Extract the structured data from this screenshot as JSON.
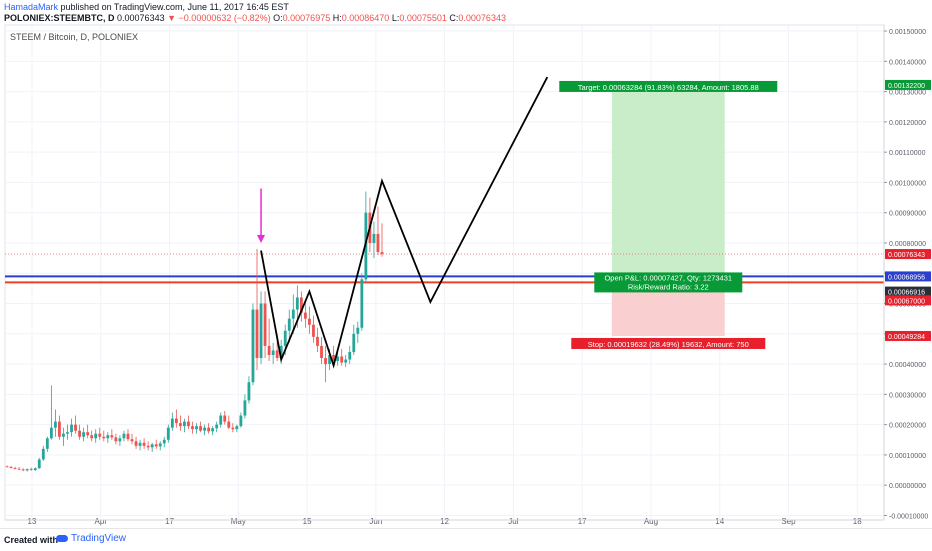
{
  "header": {
    "author": "HamadaMark",
    "published": "published on TradingView.com, June 11, 2017 16:45 EST",
    "symbol": "POLONIEX:STEEMBTC, D",
    "last": "0.00076343",
    "arrow": "▼",
    "change": "−0.00000632 (−0.82%)",
    "o_label": "O:",
    "o_value": "0.00076975",
    "h_label": "H:",
    "h_value": "0.00086470",
    "l_label": "L:",
    "l_value": "0.00075501",
    "c_label": "C:",
    "c_value": "0.00076343"
  },
  "footer": {
    "created_with": "Created with",
    "brand": "TradingView"
  },
  "colors": {
    "up": "#26a69a",
    "down": "#ef5350",
    "blue_line": "#2a3fce",
    "red_line": "#ef4023",
    "target_zone": "#c9ecc9",
    "stop_zone": "#f9cfcf",
    "label_green": "#089a37",
    "label_red": "#e8202b",
    "arrow": "#e62ed6",
    "pattern": "#000000"
  },
  "chart_data": {
    "type": "candlestick",
    "title": "STEEM / Bitcoin, D, POLONIEX",
    "x_tick_labels": [
      "13",
      "Apr",
      "17",
      "May",
      "15",
      "Jun",
      "12",
      "Jul",
      "17",
      "Aug",
      "14",
      "Sep",
      "18"
    ],
    "y_ticks": [
      "0.00150000",
      "0.00140000",
      "0.00130000",
      "0.00120000",
      "0.00110000",
      "0.00100000",
      "0.00090000",
      "0.00080000",
      "0.00070000",
      "0.00060000",
      "0.00050000",
      "0.00040000",
      "0.00030000",
      "0.00020000",
      "0.00010000",
      "0.00000000",
      "-0.00010000"
    ],
    "ylim": [
      -0.000115,
      0.00152
    ],
    "days_visible": 218,
    "candles": [
      {
        "o": 6.2e-05,
        "h": 6.5e-05,
        "l": 5.9e-05,
        "c": 6e-05
      },
      {
        "o": 6e-05,
        "h": 6.4e-05,
        "l": 5.5e-05,
        "c": 5.7e-05
      },
      {
        "o": 5.7e-05,
        "h": 6.1e-05,
        "l": 5.2e-05,
        "c": 5.4e-05
      },
      {
        "o": 5.4e-05,
        "h": 6e-05,
        "l": 5e-05,
        "c": 5.2e-05
      },
      {
        "o": 5.2e-05,
        "h": 5.6e-05,
        "l": 4.6e-05,
        "c": 4.9e-05
      },
      {
        "o": 4.9e-05,
        "h": 5.5e-05,
        "l": 4.5e-05,
        "c": 5.3e-05
      },
      {
        "o": 5.3e-05,
        "h": 5.8e-05,
        "l": 4.8e-05,
        "c": 5e-05
      },
      {
        "o": 5e-05,
        "h": 5.9e-05,
        "l": 4.7e-05,
        "c": 5.6e-05
      },
      {
        "o": 5.6e-05,
        "h": 9e-05,
        "l": 5.4e-05,
        "c": 8.5e-05
      },
      {
        "o": 8.5e-05,
        "h": 0.00013,
        "l": 8e-05,
        "c": 0.00012
      },
      {
        "o": 0.00012,
        "h": 0.00016,
        "l": 0.00011,
        "c": 0.000155
      },
      {
        "o": 0.000155,
        "h": 0.00033,
        "l": 0.00015,
        "c": 0.00019
      },
      {
        "o": 0.00019,
        "h": 0.00025,
        "l": 0.00016,
        "c": 0.00021
      },
      {
        "o": 0.00021,
        "h": 0.00023,
        "l": 0.00015,
        "c": 0.00016
      },
      {
        "o": 0.00016,
        "h": 0.00019,
        "l": 0.00013,
        "c": 0.00017
      },
      {
        "o": 0.00017,
        "h": 0.0002,
        "l": 0.00015,
        "c": 0.000175
      },
      {
        "o": 0.000175,
        "h": 0.00022,
        "l": 0.00016,
        "c": 0.0002
      },
      {
        "o": 0.0002,
        "h": 0.00023,
        "l": 0.00017,
        "c": 0.00018
      },
      {
        "o": 0.00018,
        "h": 0.0002,
        "l": 0.00015,
        "c": 0.00016
      },
      {
        "o": 0.00016,
        "h": 0.00019,
        "l": 0.000145,
        "c": 0.000175
      },
      {
        "o": 0.000175,
        "h": 0.0002,
        "l": 0.000155,
        "c": 0.000165
      },
      {
        "o": 0.000165,
        "h": 0.00018,
        "l": 0.000145,
        "c": 0.000155
      },
      {
        "o": 0.000155,
        "h": 0.000185,
        "l": 0.00014,
        "c": 0.00017
      },
      {
        "o": 0.00017,
        "h": 0.00019,
        "l": 0.00015,
        "c": 0.00016
      },
      {
        "o": 0.00016,
        "h": 0.00018,
        "l": 0.000145,
        "c": 0.000155
      },
      {
        "o": 0.000155,
        "h": 0.000175,
        "l": 0.00014,
        "c": 0.000165
      },
      {
        "o": 0.000165,
        "h": 0.000185,
        "l": 0.00015,
        "c": 0.000158
      },
      {
        "o": 0.000158,
        "h": 0.00017,
        "l": 0.000135,
        "c": 0.000145
      },
      {
        "o": 0.000145,
        "h": 0.000165,
        "l": 0.00013,
        "c": 0.000155
      },
      {
        "o": 0.000155,
        "h": 0.00018,
        "l": 0.000145,
        "c": 0.00017
      },
      {
        "o": 0.00017,
        "h": 0.000185,
        "l": 0.000145,
        "c": 0.000152
      },
      {
        "o": 0.000152,
        "h": 0.00017,
        "l": 0.000135,
        "c": 0.000145
      },
      {
        "o": 0.000145,
        "h": 0.00016,
        "l": 0.00012,
        "c": 0.00013
      },
      {
        "o": 0.00013,
        "h": 0.00015,
        "l": 0.000115,
        "c": 0.00014
      },
      {
        "o": 0.00014,
        "h": 0.000155,
        "l": 0.00012,
        "c": 0.00013
      },
      {
        "o": 0.00013,
        "h": 0.000145,
        "l": 0.000115,
        "c": 0.000125
      },
      {
        "o": 0.000125,
        "h": 0.00014,
        "l": 0.00011,
        "c": 0.000135
      },
      {
        "o": 0.000135,
        "h": 0.00015,
        "l": 0.00012,
        "c": 0.000128
      },
      {
        "o": 0.000128,
        "h": 0.000145,
        "l": 0.000115,
        "c": 0.000138
      },
      {
        "o": 0.000138,
        "h": 0.00016,
        "l": 0.000125,
        "c": 0.00015
      },
      {
        "o": 0.00015,
        "h": 0.0002,
        "l": 0.00014,
        "c": 0.00019
      },
      {
        "o": 0.00019,
        "h": 0.00024,
        "l": 0.00018,
        "c": 0.00022
      },
      {
        "o": 0.00022,
        "h": 0.00025,
        "l": 0.00019,
        "c": 0.000205
      },
      {
        "o": 0.000205,
        "h": 0.00023,
        "l": 0.00018,
        "c": 0.000195
      },
      {
        "o": 0.000195,
        "h": 0.00022,
        "l": 0.000175,
        "c": 0.00021
      },
      {
        "o": 0.00021,
        "h": 0.00023,
        "l": 0.000185,
        "c": 0.000195
      },
      {
        "o": 0.000195,
        "h": 0.00021,
        "l": 0.00017,
        "c": 0.000185
      },
      {
        "o": 0.000185,
        "h": 0.000205,
        "l": 0.00017,
        "c": 0.000195
      },
      {
        "o": 0.000195,
        "h": 0.00021,
        "l": 0.000175,
        "c": 0.00018
      },
      {
        "o": 0.00018,
        "h": 0.0002,
        "l": 0.000165,
        "c": 0.00019
      },
      {
        "o": 0.00019,
        "h": 0.000205,
        "l": 0.00017,
        "c": 0.000178
      },
      {
        "o": 0.000178,
        "h": 0.000195,
        "l": 0.000165,
        "c": 0.000188
      },
      {
        "o": 0.000188,
        "h": 0.00021,
        "l": 0.000175,
        "c": 0.0002
      },
      {
        "o": 0.0002,
        "h": 0.00024,
        "l": 0.00019,
        "c": 0.00023
      },
      {
        "o": 0.00023,
        "h": 0.000245,
        "l": 0.0002,
        "c": 0.00021
      },
      {
        "o": 0.00021,
        "h": 0.00023,
        "l": 0.000185,
        "c": 0.00019
      },
      {
        "o": 0.00019,
        "h": 0.000205,
        "l": 0.000175,
        "c": 0.000185
      },
      {
        "o": 0.000185,
        "h": 0.0002,
        "l": 0.000175,
        "c": 0.000195
      },
      {
        "o": 0.000195,
        "h": 0.00024,
        "l": 0.00019,
        "c": 0.00023
      },
      {
        "o": 0.00023,
        "h": 0.0003,
        "l": 0.00022,
        "c": 0.00028
      },
      {
        "o": 0.00028,
        "h": 0.00036,
        "l": 0.00027,
        "c": 0.00034
      },
      {
        "o": 0.00034,
        "h": 0.0006,
        "l": 0.00033,
        "c": 0.00058
      },
      {
        "o": 0.00058,
        "h": 0.00078,
        "l": 0.00038,
        "c": 0.00042
      },
      {
        "o": 0.00042,
        "h": 0.00064,
        "l": 0.0004,
        "c": 0.0006
      },
      {
        "o": 0.0006,
        "h": 0.00064,
        "l": 0.00042,
        "c": 0.00046
      },
      {
        "o": 0.00046,
        "h": 0.00055,
        "l": 0.00041,
        "c": 0.00043
      },
      {
        "o": 0.00043,
        "h": 0.00047,
        "l": 0.0004,
        "c": 0.000445
      },
      {
        "o": 0.000445,
        "h": 0.0005,
        "l": 0.00041,
        "c": 0.00042
      },
      {
        "o": 0.00042,
        "h": 0.00048,
        "l": 0.0004,
        "c": 0.00046
      },
      {
        "o": 0.00046,
        "h": 0.00053,
        "l": 0.00043,
        "c": 0.00051
      },
      {
        "o": 0.00051,
        "h": 0.00058,
        "l": 0.00047,
        "c": 0.00055
      },
      {
        "o": 0.00055,
        "h": 0.00063,
        "l": 0.0005,
        "c": 0.00058
      },
      {
        "o": 0.00058,
        "h": 0.00066,
        "l": 0.00052,
        "c": 0.00062
      },
      {
        "o": 0.00062,
        "h": 0.00064,
        "l": 0.00054,
        "c": 0.00057
      },
      {
        "o": 0.00057,
        "h": 0.00061,
        "l": 0.00052,
        "c": 0.00055
      },
      {
        "o": 0.00055,
        "h": 0.00059,
        "l": 0.0005,
        "c": 0.00053
      },
      {
        "o": 0.00053,
        "h": 0.00056,
        "l": 0.00047,
        "c": 0.00049
      },
      {
        "o": 0.00049,
        "h": 0.00052,
        "l": 0.00044,
        "c": 0.00046
      },
      {
        "o": 0.00046,
        "h": 0.00049,
        "l": 0.0004,
        "c": 0.00042
      },
      {
        "o": 0.00042,
        "h": 0.00046,
        "l": 0.00034,
        "c": 0.0004
      },
      {
        "o": 0.0004,
        "h": 0.00045,
        "l": 0.00038,
        "c": 0.00043
      },
      {
        "o": 0.00043,
        "h": 0.00046,
        "l": 0.00039,
        "c": 0.00041
      },
      {
        "o": 0.00041,
        "h": 0.00044,
        "l": 0.000395,
        "c": 0.000425
      },
      {
        "o": 0.000425,
        "h": 0.00045,
        "l": 0.000395,
        "c": 0.000405
      },
      {
        "o": 0.000405,
        "h": 0.00043,
        "l": 0.00039,
        "c": 0.000415
      },
      {
        "o": 0.000415,
        "h": 0.00046,
        "l": 0.0004,
        "c": 0.00044
      },
      {
        "o": 0.00044,
        "h": 0.00053,
        "l": 0.00043,
        "c": 0.0005
      },
      {
        "o": 0.0005,
        "h": 0.00054,
        "l": 0.00047,
        "c": 0.00052
      },
      {
        "o": 0.00052,
        "h": 0.0007,
        "l": 0.00051,
        "c": 0.00068
      },
      {
        "o": 0.00068,
        "h": 0.00097,
        "l": 0.00067,
        "c": 0.0009
      },
      {
        "o": 0.0009,
        "h": 0.00095,
        "l": 0.00077,
        "c": 0.0008
      },
      {
        "o": 0.0008,
        "h": 0.00087,
        "l": 0.00075,
        "c": 0.00083
      },
      {
        "o": 0.00083,
        "h": 0.00092,
        "l": 0.00076,
        "c": 0.00077
      },
      {
        "o": 0.0007698,
        "h": 0.0008647,
        "l": 0.000755,
        "c": 0.0007634
      }
    ],
    "lines": {
      "current_price": 0.00076343,
      "blue_level": 0.00068956,
      "red_level": 0.00067
    },
    "price_labels": [
      {
        "text": "0.00132200",
        "color": "green",
        "value": 0.001322
      },
      {
        "text": "0.00076343",
        "color": "red",
        "value": 0.00076343
      },
      {
        "text": "0.00068956",
        "color": "blue",
        "value": 0.00068956
      },
      {
        "text": "0.00066916",
        "color": "dark",
        "value": 0.00066916
      },
      {
        "text": "0.00067000",
        "color": "red",
        "value": 0.00067
      },
      {
        "text": "0.00049284",
        "color": "red",
        "value": 0.00049284
      }
    ],
    "position": {
      "start_day": 150,
      "end_day": 178,
      "entry": 0.00068956,
      "target": 0.001322,
      "stop": 0.00049284,
      "target_label": "Target: 0.00063284 (91.83%) 63284, Amount: 1805.88",
      "stop_label": "Stop: 0.00019632 (28.49%) 19632, Amount: 750",
      "pnl_label": "Open P&L: 0.00007427, Qty: 1273431",
      "ratio_label": "Risk/Reward Ratio: 3.22"
    },
    "pattern_path": [
      {
        "day": 63,
        "price": 0.000775
      },
      {
        "day": 68,
        "price": 0.000415
      },
      {
        "day": 75,
        "price": 0.00064
      },
      {
        "day": 81,
        "price": 0.000395
      },
      {
        "day": 93,
        "price": 0.001005
      },
      {
        "day": 105,
        "price": 0.000605
      },
      {
        "day": 134,
        "price": 0.001348
      }
    ],
    "arrow_annotation": {
      "day": 63,
      "from": 0.00098,
      "to": 0.0008
    }
  }
}
